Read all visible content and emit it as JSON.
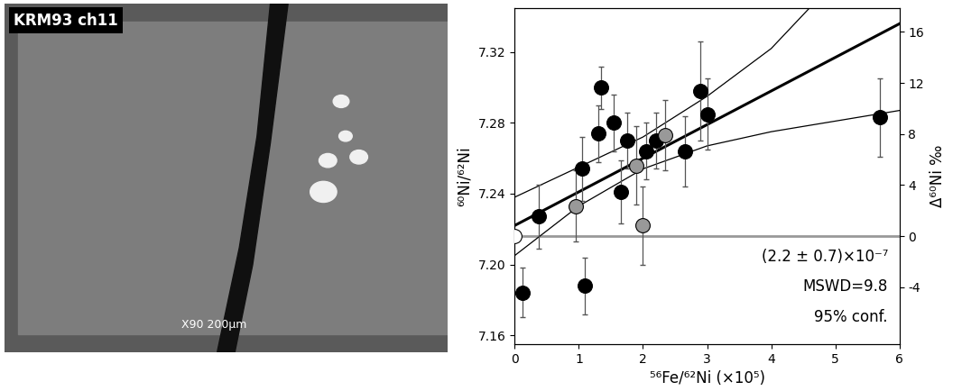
{
  "image_panel": {
    "label": "KRM93 ch11",
    "scale_text": "X90 200µm"
  },
  "chart_data": {
    "type": "scatter",
    "xlabel": "⁵⁶Fe/⁶²Ni (×10⁵)",
    "ylabel": "⁶⁰Ni/⁶²Ni",
    "y2label": "Δ⁶⁰Ni ‰",
    "xlim": [
      0,
      6
    ],
    "xticks": [
      0,
      1,
      2,
      3,
      4,
      5,
      6
    ],
    "ylim": [
      7.155,
      7.345
    ],
    "yticks": [
      {
        "value": 7.16,
        "label": "7.16"
      },
      {
        "value": 7.2,
        "label": "7.20"
      },
      {
        "value": 7.24,
        "label": "7.24"
      },
      {
        "value": 7.28,
        "label": "7.28"
      },
      {
        "value": 7.32,
        "label": "7.32"
      }
    ],
    "y2lim": [
      -8.45,
      17.88
    ],
    "y2ticks": [
      -4,
      0,
      4,
      8,
      12,
      16
    ],
    "reference_line_y2": 0,
    "series": [
      {
        "color": "#000000",
        "marker": "o",
        "x": [
          0.12,
          0.37,
          1.05,
          1.1,
          1.3,
          1.35,
          1.55,
          1.65,
          1.75,
          2.05,
          2.2,
          2.65,
          2.9,
          3.0,
          5.7
        ],
        "values": [
          7.184,
          7.227,
          7.254,
          7.188,
          7.274,
          7.3,
          7.28,
          7.241,
          7.27,
          7.264,
          7.27,
          7.264,
          7.298,
          7.285,
          7.283
        ],
        "yerr": [
          0.014,
          0.018,
          0.018,
          0.016,
          0.016,
          0.012,
          0.016,
          0.018,
          0.016,
          0.016,
          0.016,
          0.02,
          0.028,
          0.02,
          0.022
        ]
      },
      {
        "color": "#999999",
        "marker": "o",
        "x": [
          0.95,
          1.9,
          2.0,
          2.35
        ],
        "values": [
          7.233,
          7.256,
          7.222,
          7.273
        ],
        "yerr": [
          0.02,
          0.022,
          0.022,
          0.02
        ]
      },
      {
        "color": "#ffffff",
        "marker": "o",
        "x": [
          0.0
        ],
        "values": [
          7.216
        ],
        "yerr": [
          0.0
        ]
      }
    ],
    "fit_line": {
      "x": [
        0,
        6
      ],
      "y": [
        7.222,
        7.336
      ]
    },
    "envelope_upper": {
      "x": [
        0,
        1,
        2,
        3,
        4,
        4.6
      ],
      "y": [
        7.238,
        7.255,
        7.272,
        7.295,
        7.322,
        7.345
      ]
    },
    "envelope_lower": {
      "x": [
        0,
        1,
        2,
        3,
        4,
        5,
        6
      ],
      "y": [
        7.205,
        7.233,
        7.254,
        7.267,
        7.275,
        7.281,
        7.287
      ]
    },
    "annotations": [
      "(2.2 ± 0.7)×10⁻⁷",
      "MSWD=9.8",
      "95% conf."
    ]
  }
}
